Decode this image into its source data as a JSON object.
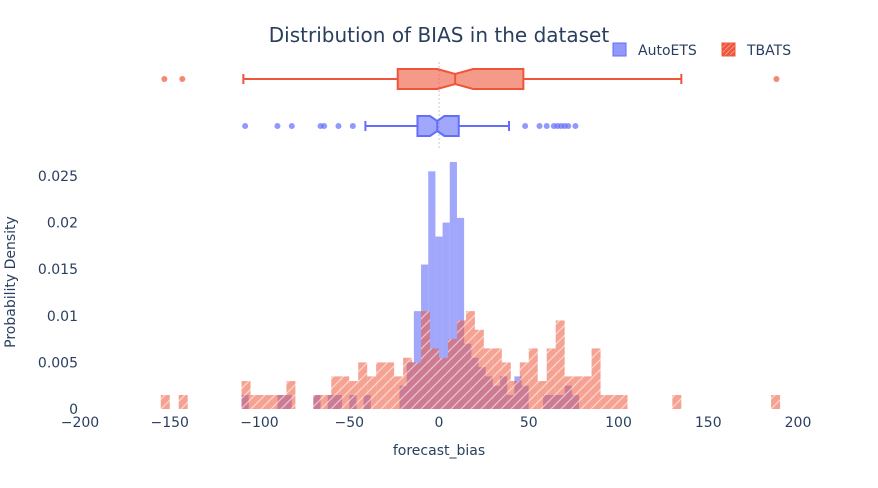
{
  "chart_data": {
    "type": "histogram",
    "title": "Distribution of BIAS in the dataset",
    "xlabel": "forecast_bias",
    "ylabel": "Probability Density",
    "xlim": [
      -200,
      200
    ],
    "ylim": [
      0,
      0.028
    ],
    "x_ticks": [
      -200,
      -150,
      -100,
      -50,
      0,
      50,
      100,
      150,
      200
    ],
    "x_tick_labels": [
      "−200",
      "−150",
      "−100",
      "−50",
      "0",
      "50",
      "100",
      "150",
      "200"
    ],
    "y_ticks": [
      0,
      0.005,
      0.01,
      0.015,
      0.02,
      0.025
    ],
    "y_tick_labels": [
      "0",
      "0.005",
      "0.01",
      "0.015",
      "0.02",
      "0.025"
    ],
    "bin_width": 4,
    "legend": {
      "placement": "top-right",
      "items": [
        {
          "name": "AutoETS",
          "color": "#636efa"
        },
        {
          "name": "TBATS",
          "color": "#ef553b"
        }
      ]
    },
    "series": [
      {
        "name": "AutoETS",
        "color": "#636efa",
        "bins": [
          {
            "x0": -110,
            "x1": -106,
            "y": 0.0015
          },
          {
            "x0": -90,
            "x1": -86,
            "y": 0.0015
          },
          {
            "x0": -86,
            "x1": -82,
            "y": 0.0015
          },
          {
            "x0": -70,
            "x1": -66,
            "y": 0.0015
          },
          {
            "x0": -62,
            "x1": -58,
            "y": 0.0015
          },
          {
            "x0": -58,
            "x1": -54,
            "y": 0.0015
          },
          {
            "x0": -50,
            "x1": -46,
            "y": 0.0015
          },
          {
            "x0": -42,
            "x1": -38,
            "y": 0.0015
          },
          {
            "x0": -22,
            "x1": -18,
            "y": 0.0025
          },
          {
            "x0": -18,
            "x1": -14,
            "y": 0.005
          },
          {
            "x0": -14,
            "x1": -10,
            "y": 0.0105
          },
          {
            "x0": -10,
            "x1": -6,
            "y": 0.0155
          },
          {
            "x0": -6,
            "x1": -2,
            "y": 0.0255
          },
          {
            "x0": -2,
            "x1": 2,
            "y": 0.0185
          },
          {
            "x0": 2,
            "x1": 6,
            "y": 0.02
          },
          {
            "x0": 6,
            "x1": 10,
            "y": 0.0265
          },
          {
            "x0": 10,
            "x1": 14,
            "y": 0.0205
          },
          {
            "x0": 14,
            "x1": 18,
            "y": 0.007
          },
          {
            "x0": 18,
            "x1": 22,
            "y": 0.0055
          },
          {
            "x0": 22,
            "x1": 26,
            "y": 0.0045
          },
          {
            "x0": 26,
            "x1": 30,
            "y": 0.0035
          },
          {
            "x0": 30,
            "x1": 34,
            "y": 0.0025
          },
          {
            "x0": 34,
            "x1": 38,
            "y": 0.0035
          },
          {
            "x0": 38,
            "x1": 42,
            "y": 0.0015
          },
          {
            "x0": 42,
            "x1": 46,
            "y": 0.0035
          },
          {
            "x0": 46,
            "x1": 50,
            "y": 0.0025
          },
          {
            "x0": 58,
            "x1": 62,
            "y": 0.0015
          },
          {
            "x0": 62,
            "x1": 66,
            "y": 0.0015
          },
          {
            "x0": 66,
            "x1": 70,
            "y": 0.0015
          },
          {
            "x0": 70,
            "x1": 74,
            "y": 0.0025
          },
          {
            "x0": 74,
            "x1": 78,
            "y": 0.0015
          }
        ],
        "box": {
          "q1": -12,
          "median": -1,
          "q3": 11,
          "lowerfence": -41,
          "upperfence": 39,
          "notch_low": -5,
          "notch_high": 3,
          "outliers": [
            -108,
            -90,
            -82,
            -66,
            -64,
            -56,
            -48,
            48,
            56,
            60,
            64,
            66,
            68,
            70,
            72,
            76
          ]
        }
      },
      {
        "name": "TBATS",
        "color": "#ef553b",
        "bins": [
          {
            "x0": -155,
            "x1": -150,
            "y": 0.0015
          },
          {
            "x0": -145,
            "x1": -140,
            "y": 0.0015
          },
          {
            "x0": -110,
            "x1": -105,
            "y": 0.003
          },
          {
            "x0": -105,
            "x1": -100,
            "y": 0.0015
          },
          {
            "x0": -100,
            "x1": -95,
            "y": 0.0015
          },
          {
            "x0": -95,
            "x1": -90,
            "y": 0.0015
          },
          {
            "x0": -90,
            "x1": -85,
            "y": 0.0015
          },
          {
            "x0": -85,
            "x1": -80,
            "y": 0.003
          },
          {
            "x0": -70,
            "x1": -65,
            "y": 0.0015
          },
          {
            "x0": -65,
            "x1": -60,
            "y": 0.0015
          },
          {
            "x0": -60,
            "x1": -55,
            "y": 0.0035
          },
          {
            "x0": -55,
            "x1": -50,
            "y": 0.0035
          },
          {
            "x0": -50,
            "x1": -45,
            "y": 0.003
          },
          {
            "x0": -45,
            "x1": -40,
            "y": 0.005
          },
          {
            "x0": -40,
            "x1": -35,
            "y": 0.0035
          },
          {
            "x0": -35,
            "x1": -30,
            "y": 0.005
          },
          {
            "x0": -30,
            "x1": -25,
            "y": 0.005
          },
          {
            "x0": -25,
            "x1": -20,
            "y": 0.0035
          },
          {
            "x0": -20,
            "x1": -15,
            "y": 0.0055
          },
          {
            "x0": -15,
            "x1": -10,
            "y": 0.005
          },
          {
            "x0": -10,
            "x1": -5,
            "y": 0.0105
          },
          {
            "x0": -5,
            "x1": 0,
            "y": 0.0065
          },
          {
            "x0": 0,
            "x1": 5,
            "y": 0.0055
          },
          {
            "x0": 5,
            "x1": 10,
            "y": 0.0075
          },
          {
            "x0": 10,
            "x1": 15,
            "y": 0.0095
          },
          {
            "x0": 15,
            "x1": 20,
            "y": 0.0105
          },
          {
            "x0": 20,
            "x1": 25,
            "y": 0.0085
          },
          {
            "x0": 25,
            "x1": 30,
            "y": 0.0065
          },
          {
            "x0": 30,
            "x1": 35,
            "y": 0.0065
          },
          {
            "x0": 35,
            "x1": 40,
            "y": 0.005
          },
          {
            "x0": 40,
            "x1": 45,
            "y": 0.003
          },
          {
            "x0": 45,
            "x1": 50,
            "y": 0.005
          },
          {
            "x0": 50,
            "x1": 55,
            "y": 0.0065
          },
          {
            "x0": 55,
            "x1": 60,
            "y": 0.003
          },
          {
            "x0": 60,
            "x1": 65,
            "y": 0.0065
          },
          {
            "x0": 65,
            "x1": 70,
            "y": 0.0095
          },
          {
            "x0": 70,
            "x1": 75,
            "y": 0.0035
          },
          {
            "x0": 75,
            "x1": 80,
            "y": 0.0035
          },
          {
            "x0": 80,
            "x1": 85,
            "y": 0.0035
          },
          {
            "x0": 85,
            "x1": 90,
            "y": 0.0065
          },
          {
            "x0": 90,
            "x1": 95,
            "y": 0.0015
          },
          {
            "x0": 95,
            "x1": 100,
            "y": 0.0015
          },
          {
            "x0": 100,
            "x1": 105,
            "y": 0.0015
          },
          {
            "x0": 130,
            "x1": 135,
            "y": 0.0015
          },
          {
            "x0": 185,
            "x1": 190,
            "y": 0.0015
          }
        ],
        "box": {
          "q1": -23,
          "median": 9,
          "q3": 47,
          "lowerfence": -109,
          "upperfence": 135,
          "notch_low": -1,
          "notch_high": 19,
          "outliers": [
            -153,
            -143,
            188
          ]
        }
      }
    ]
  }
}
